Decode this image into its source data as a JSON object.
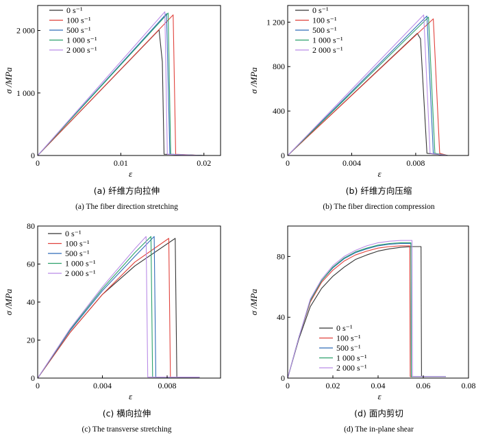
{
  "series_colors": [
    "#333333",
    "#e0403a",
    "#2f6bb8",
    "#2aa06a",
    "#b98be6"
  ],
  "chart_data": [
    {
      "type": "line",
      "caption_cn": "(a) 纤维方向拉伸",
      "caption_en": "(a) The fiber direction stretching",
      "xlabel": "ε",
      "ylabel": "σ /MPa",
      "xlim": [
        0,
        0.022
      ],
      "ylim": [
        0,
        2400
      ],
      "xticks": [
        0,
        0.01,
        0.02
      ],
      "xtick_labels": [
        "0",
        "0.01",
        "0.02"
      ],
      "yticks": [
        0,
        1000,
        2000
      ],
      "ytick_labels": [
        "0",
        "1 000",
        "2 000"
      ],
      "legend": "top-left",
      "series": [
        {
          "name": "0 s⁻¹",
          "x": [
            0,
            0.0146,
            0.015,
            0.0152,
            0.02
          ],
          "y": [
            0,
            2010,
            1500,
            20,
            0
          ]
        },
        {
          "name": "100 s⁻¹",
          "x": [
            0,
            0.0163,
            0.0166,
            0.02
          ],
          "y": [
            0,
            2250,
            20,
            0
          ]
        },
        {
          "name": "500 s⁻¹",
          "x": [
            0,
            0.0155,
            0.0159,
            0.02
          ],
          "y": [
            0,
            2270,
            20,
            0
          ]
        },
        {
          "name": "1 000 s⁻¹",
          "x": [
            0,
            0.0157,
            0.016,
            0.02
          ],
          "y": [
            0,
            2280,
            20,
            0
          ]
        },
        {
          "name": "2 000 s⁻¹",
          "x": [
            0,
            0.0153,
            0.0156,
            0.02
          ],
          "y": [
            0,
            2300,
            20,
            0
          ]
        }
      ]
    },
    {
      "type": "line",
      "caption_cn": "(b) 纤维方向压缩",
      "caption_en": "(b) The fiber direction compression",
      "xlabel": "ε",
      "ylabel": "σ /MPa",
      "xlim": [
        0,
        0.0113
      ],
      "ylim": [
        0,
        1350
      ],
      "xticks": [
        0,
        0.004,
        0.008
      ],
      "xtick_labels": [
        "0",
        "0.004",
        "0.008"
      ],
      "yticks": [
        0,
        400,
        800,
        1200
      ],
      "ytick_labels": [
        "0",
        "400",
        "800",
        "1 200"
      ],
      "legend": "top-left",
      "series": [
        {
          "name": "0 s⁻¹",
          "x": [
            0,
            0.0081,
            0.0083,
            0.0087,
            0.01
          ],
          "y": [
            0,
            1100,
            1050,
            20,
            0
          ]
        },
        {
          "name": "100 s⁻¹",
          "x": [
            0,
            0.0091,
            0.0095,
            0.01
          ],
          "y": [
            0,
            1230,
            20,
            0
          ]
        },
        {
          "name": "500 s⁻¹",
          "x": [
            0,
            0.0087,
            0.0091,
            0.01
          ],
          "y": [
            0,
            1255,
            20,
            0
          ]
        },
        {
          "name": "1 000 s⁻¹",
          "x": [
            0,
            0.0088,
            0.0092,
            0.01
          ],
          "y": [
            0,
            1245,
            20,
            0
          ]
        },
        {
          "name": "2 000 s⁻¹",
          "x": [
            0,
            0.0085,
            0.0089,
            0.01
          ],
          "y": [
            0,
            1265,
            20,
            0
          ]
        }
      ]
    },
    {
      "type": "line",
      "caption_cn": "(c) 横向拉伸",
      "caption_en": "(c) The transverse stretching",
      "xlabel": "ε",
      "ylabel": "σ /MPa",
      "xlim": [
        0,
        0.0113
      ],
      "ylim": [
        0,
        80
      ],
      "xticks": [
        0,
        0.004,
        0.008
      ],
      "xtick_labels": [
        "0",
        "0.004",
        "0.008"
      ],
      "yticks": [
        0,
        20,
        40,
        60,
        80
      ],
      "ytick_labels": [
        "0",
        "20",
        "40",
        "60",
        "80"
      ],
      "legend": "top-left",
      "series": [
        {
          "name": "0 s⁻¹",
          "x": [
            0,
            0.002,
            0.004,
            0.006,
            0.0085,
            0.0086,
            0.01
          ],
          "y": [
            0,
            24,
            44,
            59,
            73.5,
            0.5,
            0.5
          ]
        },
        {
          "name": "100 s⁻¹",
          "x": [
            0,
            0.002,
            0.004,
            0.006,
            0.0081,
            0.0082,
            0.01
          ],
          "y": [
            0,
            24,
            44,
            61,
            73.5,
            0.5,
            0.5
          ]
        },
        {
          "name": "500 s⁻¹",
          "x": [
            0,
            0.002,
            0.004,
            0.006,
            0.0072,
            0.0073,
            0.01
          ],
          "y": [
            0,
            25,
            46,
            64,
            74.5,
            0.5,
            0.5
          ]
        },
        {
          "name": "1 000 s⁻¹",
          "x": [
            0,
            0.002,
            0.004,
            0.006,
            0.007,
            0.0071,
            0.01
          ],
          "y": [
            0,
            25.5,
            47,
            66,
            74.5,
            0.5,
            0.5
          ]
        },
        {
          "name": "2 000 s⁻¹",
          "x": [
            0,
            0.002,
            0.004,
            0.006,
            0.0067,
            0.0068,
            0.01
          ],
          "y": [
            0,
            26,
            48,
            68,
            74.5,
            0.5,
            0.5
          ]
        }
      ]
    },
    {
      "type": "line",
      "caption_cn": "(d) 面内剪切",
      "caption_en": "(d) The in-plane shear",
      "xlabel": "ε",
      "ylabel": "σ /MPa",
      "xlim": [
        0,
        0.08
      ],
      "ylim": [
        0,
        100
      ],
      "xticks": [
        0,
        0.02,
        0.04,
        0.06,
        0.08
      ],
      "xtick_labels": [
        "0",
        "0.02",
        "0.04",
        "0.06",
        "0.08"
      ],
      "yticks": [
        0,
        40,
        80
      ],
      "ytick_labels": [
        "0",
        "40",
        "80"
      ],
      "legend": "bottom-left",
      "series": [
        {
          "name": "0 s⁻¹",
          "x": [
            0,
            0.005,
            0.01,
            0.015,
            0.02,
            0.025,
            0.03,
            0.035,
            0.04,
            0.045,
            0.05,
            0.055,
            0.059,
            0.0592,
            0.07
          ],
          "y": [
            0,
            26,
            47,
            59,
            67,
            73,
            78,
            81,
            83.5,
            85,
            86,
            86.5,
            86.5,
            1,
            1
          ]
        },
        {
          "name": "100 s⁻¹",
          "x": [
            0,
            0.005,
            0.01,
            0.015,
            0.02,
            0.025,
            0.03,
            0.035,
            0.04,
            0.045,
            0.05,
            0.054,
            0.0542,
            0.07
          ],
          "y": [
            0,
            27,
            50,
            63,
            71,
            77,
            81,
            83.5,
            85.5,
            86.5,
            87,
            87,
            1,
            1
          ]
        },
        {
          "name": "500 s⁻¹",
          "x": [
            0,
            0.005,
            0.01,
            0.015,
            0.02,
            0.025,
            0.03,
            0.035,
            0.04,
            0.045,
            0.05,
            0.0545,
            0.0547,
            0.07
          ],
          "y": [
            0,
            27,
            51,
            64,
            72.5,
            78.5,
            82.5,
            85,
            87,
            88,
            88.5,
            88.5,
            1,
            1
          ]
        },
        {
          "name": "1 000 s⁻¹",
          "x": [
            0,
            0.005,
            0.01,
            0.015,
            0.02,
            0.025,
            0.03,
            0.035,
            0.04,
            0.045,
            0.05,
            0.0545,
            0.0547,
            0.07
          ],
          "y": [
            0,
            27,
            51,
            64,
            73,
            79,
            83,
            85.5,
            87.5,
            88.5,
            89,
            89,
            1,
            1
          ]
        },
        {
          "name": "2 000 s⁻¹",
          "x": [
            0,
            0.005,
            0.01,
            0.015,
            0.02,
            0.025,
            0.03,
            0.035,
            0.04,
            0.045,
            0.05,
            0.055,
            0.0552,
            0.07
          ],
          "y": [
            0,
            27,
            52,
            65,
            74,
            80,
            84,
            87,
            89,
            90,
            90.5,
            90.5,
            1,
            1
          ]
        }
      ]
    }
  ]
}
